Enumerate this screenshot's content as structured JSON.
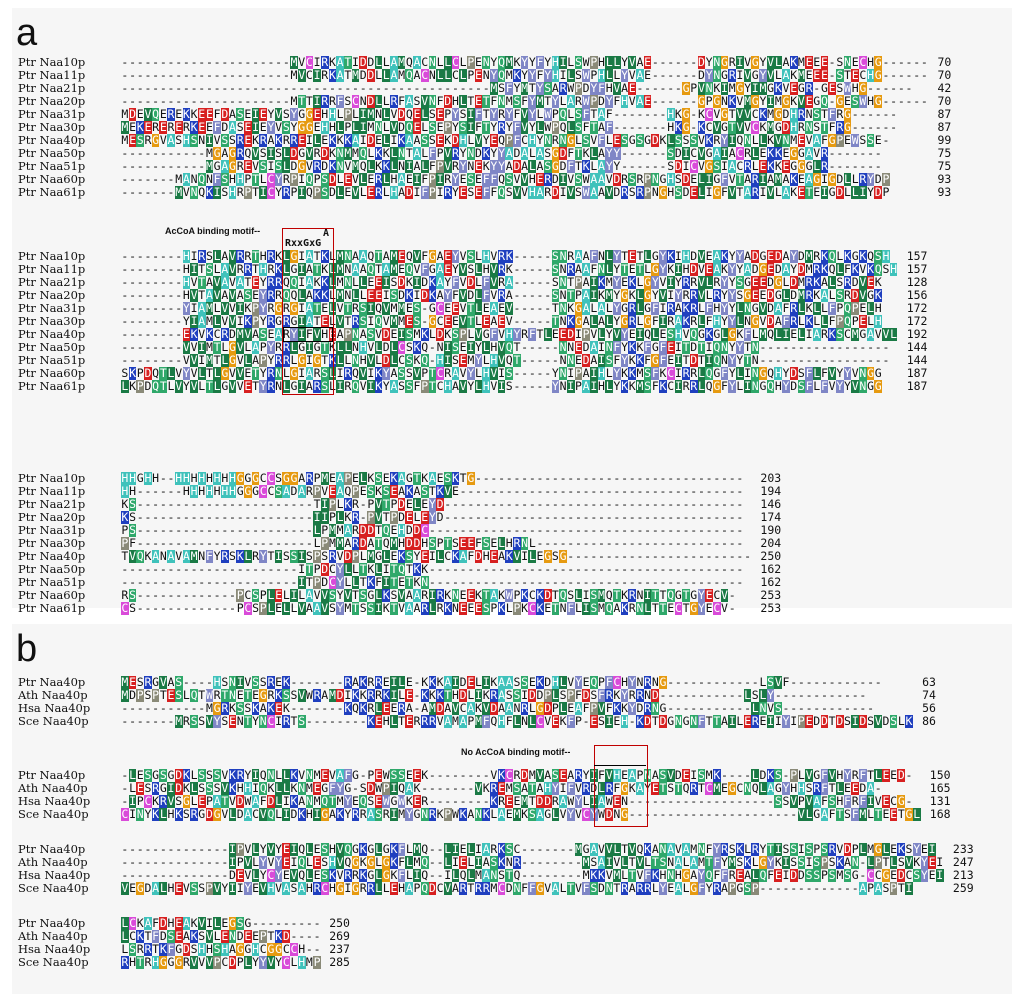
{
  "panels": [
    {
      "label": "a",
      "blocks": [
        {
          "rows": [
            {
              "name": "Ptr Naa10p",
              "seq": "----------------------MVCIRKATIDDLLAMQACNLLCLPENYQMKYYFYHILSWPHLLYVAE------DYNGRIVGYVLAKMEEE-SNECHG------",
              "end": "70"
            },
            {
              "name": "Ptr Naa11p",
              "seq": "----------------------MVCIRKATMDDLLAMQACNLLCLPENYQMKYYFYHILSWPHLLYVAE------DYNGRIVGYVLAKMEEE-STECHG------",
              "end": "70"
            },
            {
              "name": "Ptr Naa21p",
              "seq": "------------------------------------------------MSFYMTYSARWPDYFHVAE------GPVNKIMGYIMGKVEGR-GESWHG------",
              "end": "42"
            },
            {
              "name": "Ptr Naa20p",
              "seq": "----------------------MTTIRRFSCNDLLRFASVNFDHLTETFNMSFYMTYLARWPDYFHVAE------GPGNKVMGYIMGKVEGQ-GESWHG------",
              "end": "70"
            },
            {
              "name": "Ptr Naa31p",
              "seq": "MDEVQEREKKEEFDASEIEYVSYGGEHHLPLIMNLVDQELSEPYSIFTYRYFVYLWPQLSFTAF-------HKG-KCVGTVVCKMGDHRNSTFRG------",
              "end": "87"
            },
            {
              "name": "Ptr Naa30p",
              "seq": "MEKERERERKEEFDASEIEYVSYGGEHHLPLIMNLVDQELSEPYSIFTYRYFVYLWPQLSFTAF-------HKG-KCVGTVVCKMGDHRNSTFRG------",
              "end": "87"
            },
            {
              "name": "Ptr Naa40p",
              "seq": "MESRGVASHSNIVSSREKRAKRREILEKKKAIDELIKAASSEKDHLVYEQPFCHYNRNGLSVFLESGSGDKLSSSVKRYIQNLLKVNMEVAFGPEWSSE-",
              "end": "99"
            },
            {
              "name": "Ptr Naa50p",
              "seq": "-----------MGAGRQVSISLDGVRDKNMMQLKKLNTALFPVRYNDKYYADALASGDFTKLAYY------SDICVGAIACRLEKKEGGAVR-------",
              "end": "75"
            },
            {
              "name": "Ptr Naa51p",
              "seq": "-----------MGAGREVSISLDGVRDKNVMQLKKLNIALFPVRYNEKYYADALASGDFTKLAYY------SDICVGSIACRLEKKEGGGLR-------",
              "end": "75"
            },
            {
              "name": "Ptr Naa60p",
              "seq": "-------MANQNFSHHPTLCYRPIQPSDLEVLERLHAEIFPIRYESEFFQSVVHERDIVSWAAVDRSRPNGHSDELIGFVTARIAMAKEAGIGDLLRYDP",
              "end": "93"
            },
            {
              "name": "Ptr Naa61p",
              "seq": "-------MVNQKISHRPTICYRPIQPSDLEVLERLHADIFPIRYESEFFQSVVHARDIVSWAAVDRSRPNGHSDELIGFVTARIVLAKETEIGDLLIYDP",
              "end": "93"
            }
          ]
        },
        {
          "motif_label": "AcCoA binding motif--",
          "motif_top": "A",
          "motif_text": "RxxGxG",
          "rows": [
            {
              "name": "Ptr Naa10p",
              "seq": "--------HIRSLAVRRTHRKLGIATKLMNAAQTAMEQVFGAEYVSLHVRK-----SNRAAFNLYTETLGYKIHDVEAKYYADGEDAYDMRKQLKGKQSH",
              "end": "157"
            },
            {
              "name": "Ptr Naa11p",
              "seq": "--------HITSLAVRRTHRKLGIATKLMNAAQTAMEQVFGAEYVSLHVRK-----SNRAAFNLYTETLGYKIHDVEAKYYADGEDAYDMRKQLFKVKQSH",
              "end": "157"
            },
            {
              "name": "Ptr Naa21p",
              "seq": "--------HVTAVAVATEYRRQQIAKKLMNLLEEISDKIDKAYFVDLFVRA-----SNTPAIKMYEKLGYVIYRRVLRYYSGEEDGLDMRKALSRDVEK",
              "end": "128"
            },
            {
              "name": "Ptr Naa20p",
              "seq": "--------HVTAVAVASEYRRQQLAKKLMNLLEEISDKIDKAYFVDLFVRA-----SNTPAIKMYGKLGYVIYRRVLRYYSGEEDGLDMRKALSRDVGK",
              "end": "156"
            },
            {
              "name": "Ptr Naa31p",
              "seq": "--------YIAMLVVIKPYRGRGIATELVTRSIQVMMES-GCEEVTLEAEV-----TNKGALALYGRLGFIRAKRLFHYYLNGVDAFRLKLLFPQPELH",
              "end": "172"
            },
            {
              "name": "Ptr Naa30p",
              "seq": "--------YIAMLVVIKPYRGRGIATELVTRSIQVMMES-GCEEVTLEAEV-----TNKGALALYGRLGFIRAKRLFHYYLNGVDAFRLKLLFPQPELH",
              "end": "172"
            },
            {
              "name": "Ptr Naa40p",
              "seq": "--------EKVKCRDMVASEARYIFVHEAPNASVDEISMKLDKSPLVGFVHYRFTLEEDIPVLYVYEIQLESHVQGKGLGKFLMQLIELIARKSCMGAVVL",
              "end": "192"
            },
            {
              "name": "Ptr Naa50p",
              "seq": "--------VVIMTLGVLAPYRRLGIGTKLLNHVLDLCSKQ-NISEIYLHVQT-----NNEDAINFYKKFGFEITDTIQNYYTN-----------------",
              "end": "144"
            },
            {
              "name": "Ptr Naa51p",
              "seq": "--------VVIMTLGVLAPYRRLGIGTKLLNHVLDLCSKQ-HISEMYLHVQT-----NNEDAISFYKKFGFEITDTIQNYYTN-----------------",
              "end": "144"
            },
            {
              "name": "Ptr Naa60p",
              "seq": "SKPDQTLVYVLTLGVVETYRNLGIARSLIRQVIKYASSVPTCRAVYLHVIS-----YNIPAIHLYKKMSFKCIRRLQGFYLINGQHYDSFLFVYYVNGG",
              "end": "187"
            },
            {
              "name": "Ptr Naa61p",
              "seq": "LKPDQTLVYVLTLGVVETYRNLGIARSLIRQVIKYASSFPTCHAVYLHVIS-----YNIPAIHLYKKMSFKCIRRLQGFYLINGQHYDSFLFVYYVNGG",
              "end": "187"
            }
          ]
        },
        {
          "rows": [
            {
              "name": "Ptr Naa10p",
              "seq": "HHGHH--HHHHHHHHGGGCCSGGARPMEAPELKSEKAGTKAESKTG-----------------------------------",
              "end": "203"
            },
            {
              "name": "Ptr Naa11p",
              "seq": "HH------HHHHHHHGGGCCSADARPVEAQPESKSEAKASTKVE-------------------------------------",
              "end": "194"
            },
            {
              "name": "Ptr Naa21p",
              "seq": "KS-----------------------TIPLKR-PVTPDELEYD---------------------------------------",
              "end": "146"
            },
            {
              "name": "Ptr Naa20p",
              "seq": "KS-----------------------IIPLKR-PVTPDELEYD---------------------------------------",
              "end": "174"
            },
            {
              "name": "Ptr Naa31p",
              "seq": "PS-----------------------LPMMARDDTQEHDDC-----------------------------------------",
              "end": "190"
            },
            {
              "name": "Ptr Naa30p",
              "seq": "PF-----------------------LPMMARDATQMHDDHSPTSEEFSELHRNL---------------------------",
              "end": "204"
            },
            {
              "name": "Ptr Naa40p",
              "seq": "TVQKANAVAMNFYRSKLRYTISSISPSRVDPLMGLEKSYEILCKAFDHEAKVILEGSG------------------------",
              "end": "250"
            },
            {
              "name": "Ptr Naa50p",
              "seq": "-----------------------ITPDCYLLTKLITQTKK-----------------------------------------",
              "end": "162"
            },
            {
              "name": "Ptr Naa51p",
              "seq": "-----------------------ITPDCYLLTKFITETKN-----------------------------------------",
              "end": "162"
            },
            {
              "name": "Ptr Naa60p",
              "seq": "RS-------------PCSPLELILAVVSYVTSGLKSVAARIRKNEEKTAKWPKCKDTQSLISMQTKRNITTQGTGYECV-",
              "end": "253"
            },
            {
              "name": "Ptr Naa61p",
              "seq": "CS-------------PCSPLELLVAAVSYMTSSIKTVAARLRKNEEESPKLPKCKETNFLISMQAKRNLTTECTGYECV-",
              "end": "253"
            }
          ]
        }
      ]
    },
    {
      "label": "b",
      "blocks": [
        {
          "rows": [
            {
              "name": "Ptr Naa40p",
              "seq": "MESRGVAS----HSNIVSSREK-------RAKRREILE-KKKAIDELIKAASSEKDHLVYEQPFCHYNRNG------------LSVF------------",
              "end": "63"
            },
            {
              "name": "Ath Naa40p",
              "seq": "MDPSPTESLQTWRTNETEGRKSSVWRAMDIKKRRKILE-KKKTHDLIKRASSIDDPLSPFDSFRKYRRND-----------LSLY------------",
              "end": "74"
            },
            {
              "name": "Hsa Naa40p",
              "seq": "-----------MGRKSSKAKEK-------KQKRLEERA-AMDAVCAKVDAANRLGDPLEAFPVFKKYDRNG-----------LNVS------------",
              "end": "56"
            },
            {
              "name": "Sce Naa40p",
              "seq": "-------MRSSVYSENTYNCIRTS--------KEHLTERRRVAMAPMFQHFLNLCVEKFP-ESIEH-KDTDGNGNFTTAILEREIIYIPEDDTDSIDSVDSLK",
              "end": "86"
            }
          ]
        },
        {
          "motif_label": "No AcCoA binding motif--",
          "rows": [
            {
              "name": "Ptr Naa40p",
              "seq": "-LESGSGDKLSSSVKRYIQNLLKVNMEVAFG-PEWSSEEK--------VKCRDMVASEARYIFVHEAPNASVDEISMK----LDKS-PLVGFVHYRFTLEED-",
              "end": "150"
            },
            {
              "name": "Ath Naa40p",
              "seq": "-LESRGIDKLSSSVKHHIQKLLKNMEGFYG-SDWPIQAK-------VKREMSATAHYIFVRDLRFGKAYETSTQRTCMEGCNQLAGYHHSRFTLEEDA-",
              "end": "165"
            },
            {
              "name": "Hsa Naa40p",
              "seq": "-IPCKRVSGLEPATVDWAFDLIKANMQTMYEQSEWGWKER--------KREEMTDDRAWYLIAWEN-------------------SSVPVAFSHFRFIVECG-",
              "end": "131"
            },
            {
              "name": "Sce Naa40p",
              "seq": "CINYKLHKSRGDGVLDACVQLIDKHIGAKYRRASRIMYGNRKPWKANKLAEMKSAGLVYVCYWDNG----------------------VLGAFTSFMLTEETGL",
              "end": "168"
            }
          ]
        },
        {
          "rows": [
            {
              "name": "Ptr Naa40p",
              "seq": "--------------IPVLYVYEIQLESHVQGKGLGKFLMQ--LIELIARKSC-------MGAVVLTVQKANAVAMNFYRSKLRYTISSISPSRVDPLMGLEKSYEI",
              "end": "233"
            },
            {
              "name": "Ath Naa40p",
              "seq": "--------------IPVLYVYEIQLESHVQGKGLGKFLMQ--LIELIASKNR--------MSAIVLTVLTSNALAMTFYMSKLGYKISSISPSKAN-LPTLSVKYEI",
              "end": "247"
            },
            {
              "name": "Hsa Naa40p",
              "seq": "--------------DEVLYCYEVQLESKVRRKGLGKFLIQ--ILQLMANSTQ--------MKKVMLTVFKHNHGAYQFFREALQFEIDDSSPSMSG-CCGEDCSYEI",
              "end": "213"
            },
            {
              "name": "Sce Naa40p",
              "seq": "VEGDALHEVSSPVYIIYEVHVASAHRCHGIGRRLLEHAPQDCVARTRRMCDNFFGVALTVFSDNTRARRLYEALGFYRAPGSP-------------APASPTI",
              "end": "259"
            }
          ]
        },
        {
          "rows": [
            {
              "name": "Ptr Naa40p",
              "seq": "LCKAFDHEAKVILEGSG---------",
              "end": "250"
            },
            {
              "name": "Ath Naa40p",
              "seq": "LCKTFDSEAKSVLENDEEPTKD----",
              "end": "269"
            },
            {
              "name": "Hsa Naa40p",
              "seq": "LSRRTKFGDSHHSHAGGHCGGCCH--",
              "end": "237"
            },
            {
              "name": "Sce Naa40p",
              "seq": "RHTRHGGGRVVVPCDPLYYVYCLHMP",
              "end": "285"
            }
          ]
        }
      ]
    }
  ]
}
